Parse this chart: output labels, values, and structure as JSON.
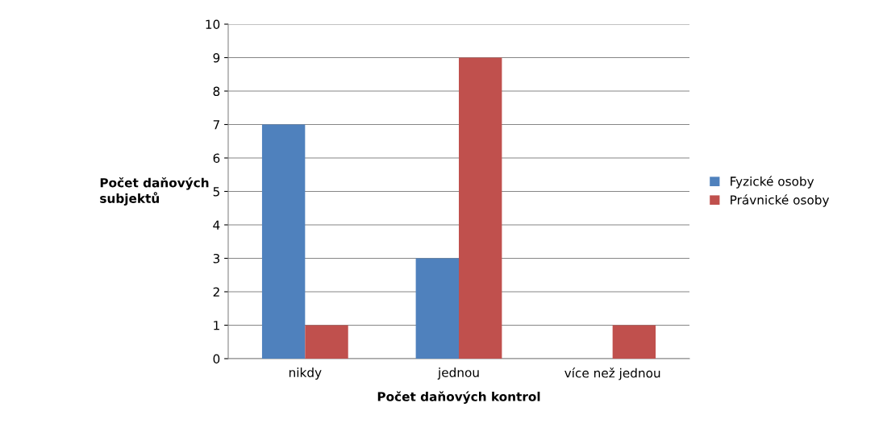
{
  "chart_data": {
    "type": "bar",
    "xlabel": "Počet daňových kontrol",
    "ylabel": "Počet daňových\nsubjektů",
    "categories": [
      "nikdy",
      "jednou",
      "více než jednou"
    ],
    "series": [
      {
        "name": "Fyzické osoby",
        "color": "#4f81bd",
        "values": [
          7,
          3,
          0
        ]
      },
      {
        "name": "Právnické osoby",
        "color": "#c0504d",
        "values": [
          1,
          9,
          1
        ]
      }
    ],
    "ylim": [
      0,
      10
    ],
    "yticks": [
      0,
      1,
      2,
      3,
      4,
      5,
      6,
      7,
      8,
      9,
      10
    ],
    "grid": "y",
    "legend": "right"
  }
}
